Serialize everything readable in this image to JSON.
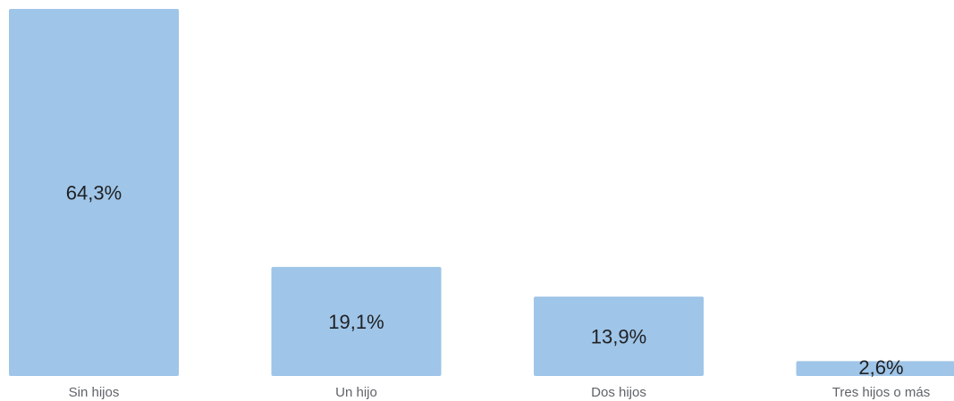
{
  "chart_data": {
    "type": "bar",
    "categories": [
      "Sin hijos",
      "Un hijo",
      "Dos hijos",
      "Tres hijos o más"
    ],
    "values": [
      64.3,
      19.1,
      13.9,
      2.6
    ],
    "data_labels": [
      "64,3%",
      "19,1%",
      "13,9%",
      "2,6%"
    ],
    "unit": "%",
    "ylim": [
      0,
      64.3
    ],
    "grid": false,
    "legend": "none",
    "bar_color": "#9fc5e8"
  }
}
